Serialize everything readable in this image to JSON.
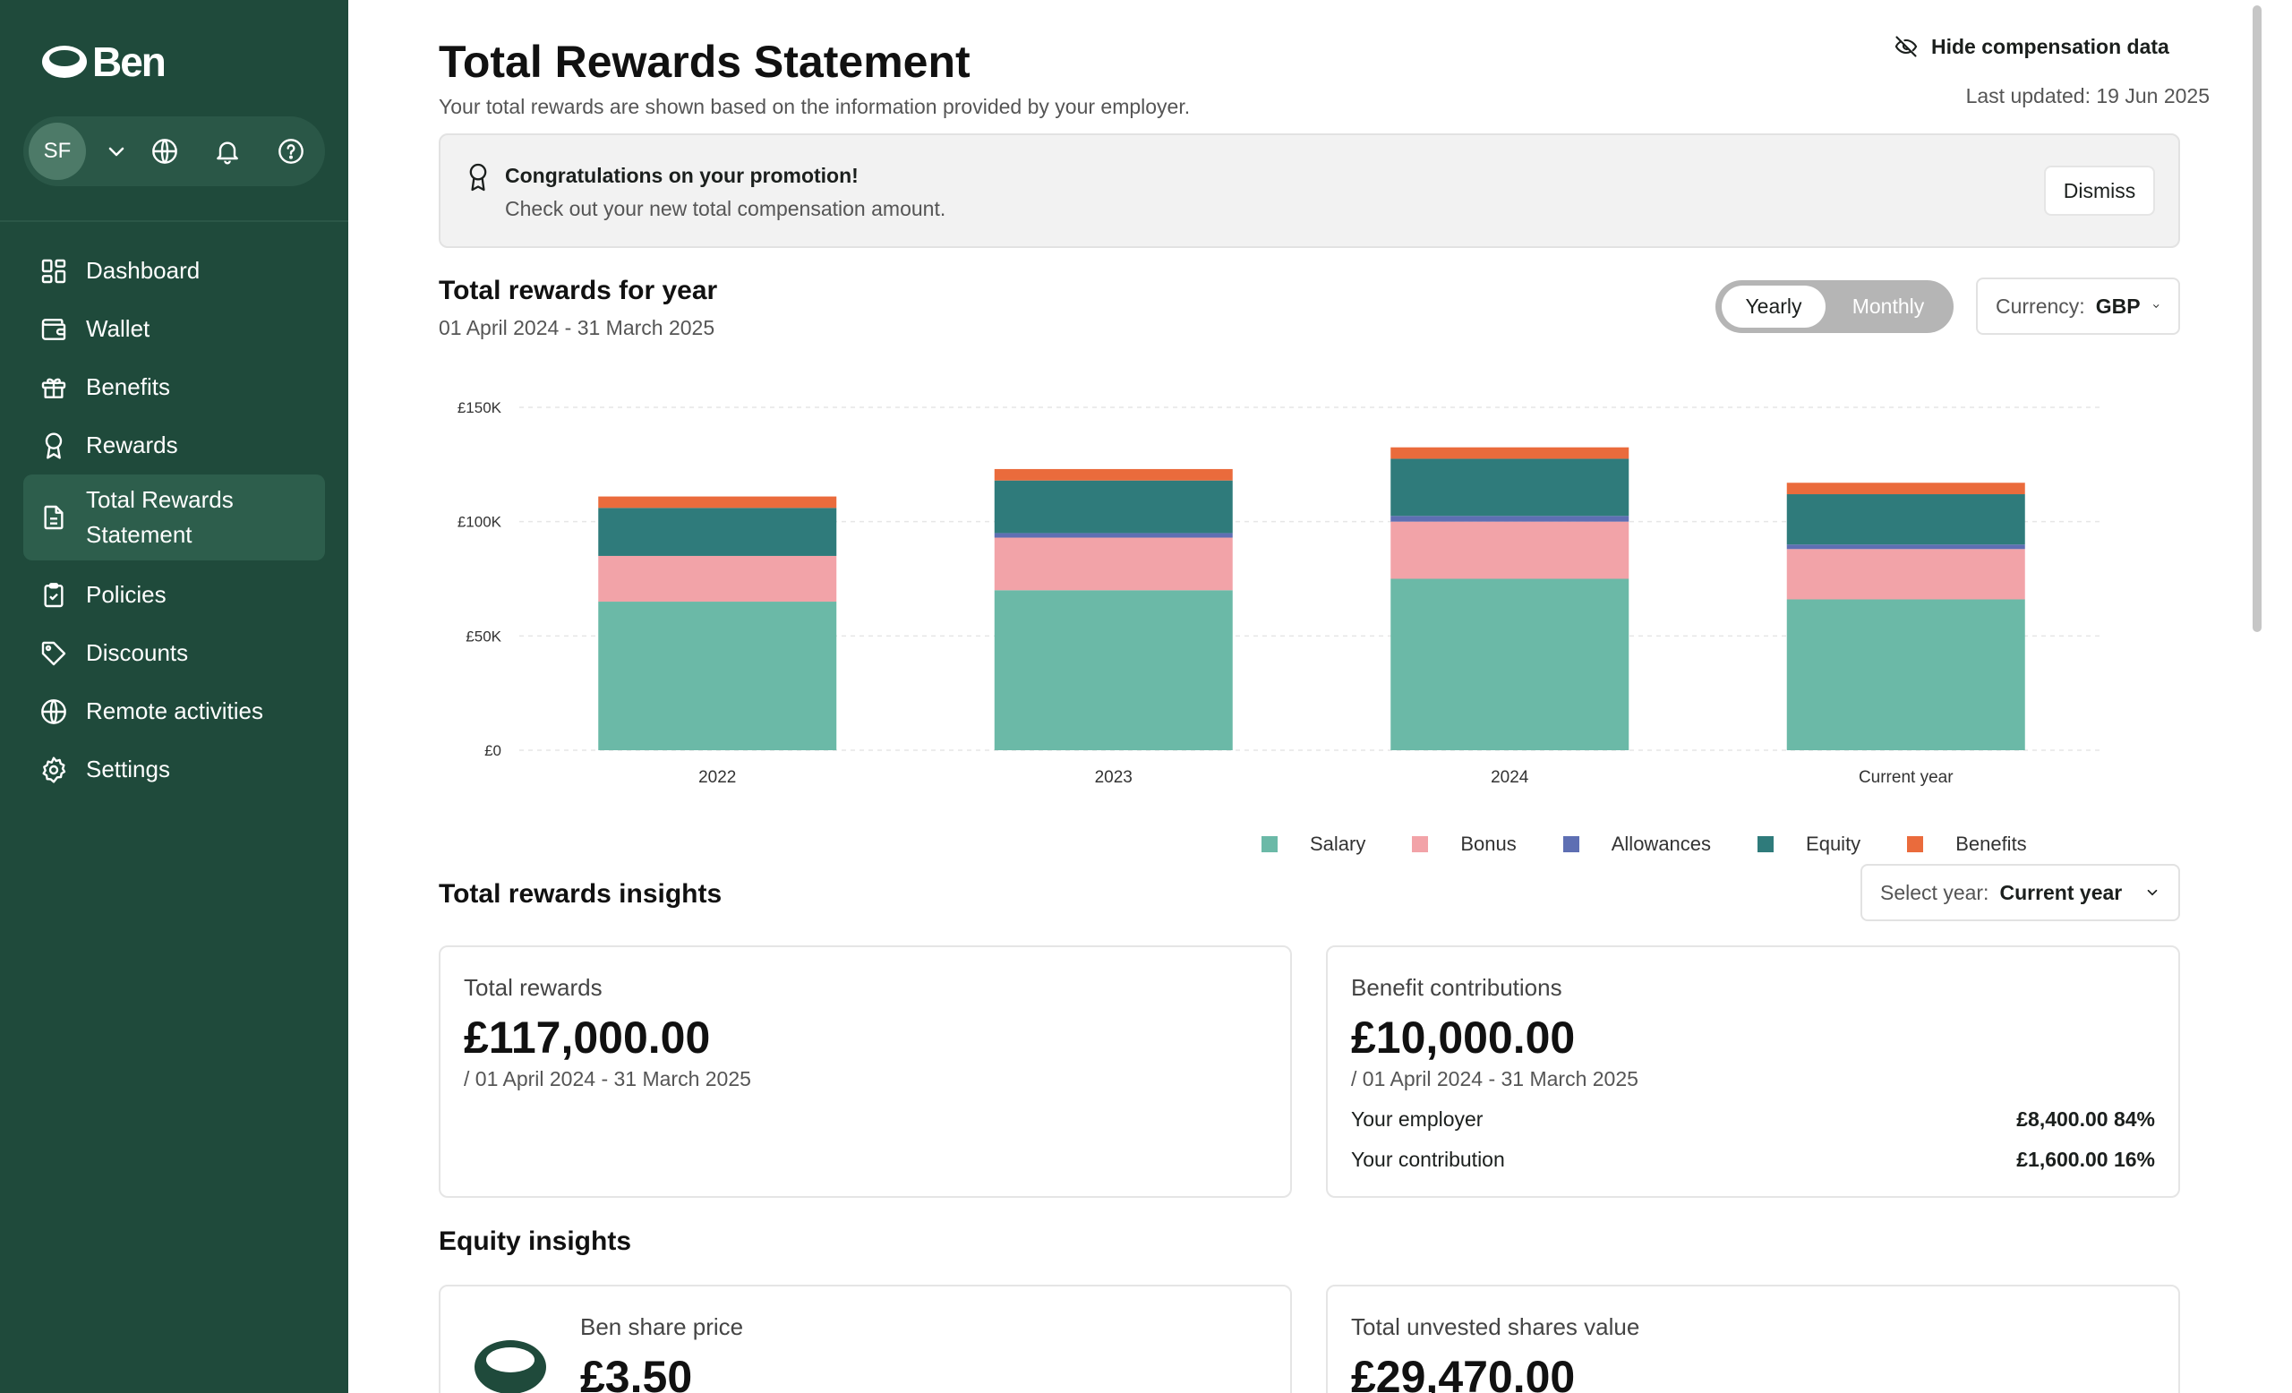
{
  "app": {
    "logo_text": "Ben"
  },
  "user": {
    "initials": "SF"
  },
  "sidebar": {
    "items": [
      {
        "label": "Dashboard",
        "icon": "dashboard-icon"
      },
      {
        "label": "Wallet",
        "icon": "wallet-icon"
      },
      {
        "label": "Benefits",
        "icon": "gift-icon"
      },
      {
        "label": "Rewards",
        "icon": "award-icon"
      },
      {
        "label": "Total Rewards Statement",
        "label_line1": "Total Rewards",
        "label_line2": "Statement",
        "icon": "document-icon",
        "active": true
      },
      {
        "label": "Policies",
        "icon": "clipboard-icon"
      },
      {
        "label": "Discounts",
        "icon": "tag-icon"
      },
      {
        "label": "Remote activities",
        "icon": "globe-icon"
      },
      {
        "label": "Settings",
        "icon": "gear-icon"
      }
    ]
  },
  "header": {
    "title": "Total Rewards Statement",
    "subtitle": "Your total rewards are shown based on the information provided by your employer.",
    "hide_label": "Hide compensation data",
    "last_updated": "Last updated: 19 Jun 2025"
  },
  "promo": {
    "title": "Congratulations on your promotion!",
    "text": "Check out your new total compensation amount.",
    "dismiss_label": "Dismiss"
  },
  "rewards": {
    "title": "Total rewards for year",
    "period": "01 April 2024 - 31 March 2025",
    "toggle": {
      "yearly": "Yearly",
      "monthly": "Monthly",
      "selected": "Yearly"
    },
    "currency": {
      "label": "Currency:",
      "value": "GBP"
    }
  },
  "chart_data": {
    "type": "bar",
    "stacked": true,
    "categories": [
      "2022",
      "2023",
      "2024",
      "Current year"
    ],
    "series": [
      {
        "name": "Salary",
        "values": [
          65000,
          70000,
          75000,
          66000
        ],
        "color": "#6bb9a7"
      },
      {
        "name": "Bonus",
        "values": [
          20000,
          23000,
          25000,
          22000
        ],
        "color": "#f2a3a8"
      },
      {
        "name": "Allowances",
        "values": [
          0,
          2000,
          2500,
          2000
        ],
        "color": "#5e6fb3"
      },
      {
        "name": "Equity",
        "values": [
          21000,
          23000,
          25000,
          22000
        ],
        "color": "#2f7b7b"
      },
      {
        "name": "Benefits",
        "values": [
          5000,
          5000,
          5000,
          5000
        ],
        "color": "#ea6b3c"
      }
    ],
    "ylim": [
      0,
      150000
    ],
    "yticks": [
      "£0",
      "£50K",
      "£100K",
      "£150K"
    ],
    "ytick_values": [
      0,
      50000,
      100000,
      150000
    ],
    "grid": true,
    "legend": "bottom"
  },
  "insights": {
    "title": "Total rewards insights",
    "select_year": {
      "label": "Select year:",
      "value": "Current year"
    },
    "total_rewards": {
      "label": "Total rewards",
      "value": "£117,000.00",
      "period": "/ 01 April 2024 - 31 March 2025"
    },
    "benefit_contributions": {
      "label": "Benefit contributions",
      "value": "£10,000.00",
      "period": "/ 01 April 2024 - 31 March 2025",
      "rows": [
        {
          "label": "Your employer",
          "value": "£8,400.00 84%"
        },
        {
          "label": "Your contribution",
          "value": "£1,600.00 16%"
        }
      ]
    }
  },
  "equity": {
    "title": "Equity insights",
    "share_price": {
      "label": "Ben share price",
      "value": "£3.50"
    },
    "unvested": {
      "label": "Total unvested shares value",
      "value": "£29,470.00"
    }
  }
}
